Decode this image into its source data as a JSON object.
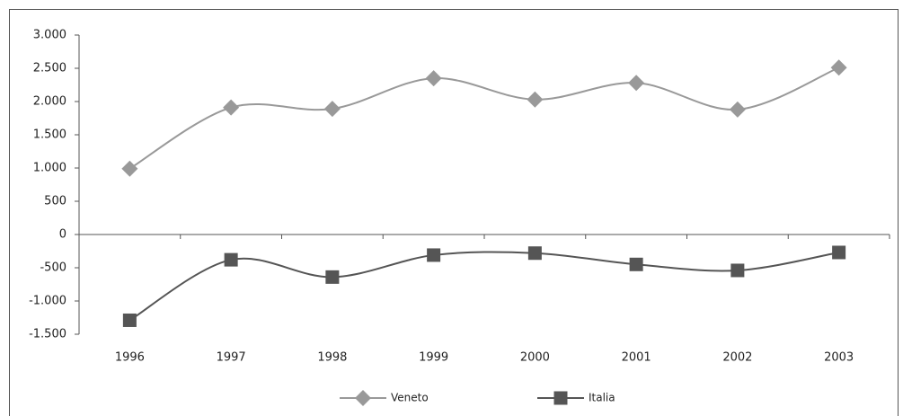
{
  "chart_data": {
    "type": "line",
    "categories": [
      "1996",
      "1997",
      "1998",
      "1999",
      "2000",
      "2001",
      "2002",
      "2003"
    ],
    "series": [
      {
        "name": "Veneto",
        "color": "#999999",
        "marker": "diamond",
        "values": [
          990,
          1910,
          1890,
          2350,
          2030,
          2280,
          1880,
          2510
        ]
      },
      {
        "name": "Italia",
        "color": "#555555",
        "marker": "square",
        "values": [
          -1290,
          -380,
          -640,
          -310,
          -280,
          -450,
          -540,
          -270
        ]
      }
    ],
    "ylim": [
      -1500,
      3000
    ],
    "yticks": [
      {
        "value": -1500,
        "label": "-1.500"
      },
      {
        "value": -1000,
        "label": "-1.000"
      },
      -500,
      0,
      500,
      {
        "value": 1000,
        "label": "1.000"
      },
      {
        "value": 1500,
        "label": "1.500"
      },
      {
        "value": 2000,
        "label": "2.000"
      },
      {
        "value": 2500,
        "label": "2.500"
      },
      {
        "value": 3000,
        "label": "3.000"
      }
    ],
    "smooth": true,
    "legend": "bottom"
  }
}
